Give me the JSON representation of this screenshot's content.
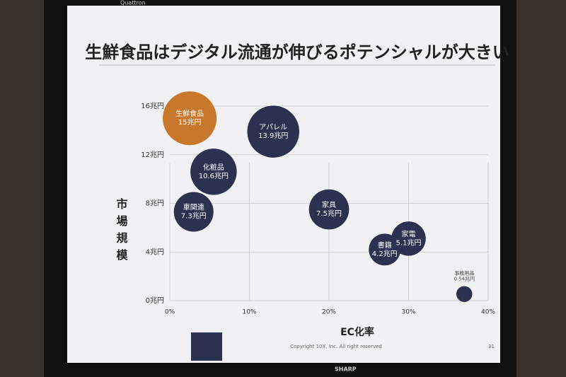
{
  "brand_top": "Quattron",
  "brand_bottom": "SHARP",
  "chart_data": {
    "type": "bubble",
    "title": "生鮮食品はデジタル流通が伸びるポテンシャルが大きい",
    "x_label": "EC化率",
    "y_label": "市場規模",
    "xlim": [
      0,
      40
    ],
    "ylim": [
      0,
      16
    ],
    "xticks": [
      {
        "value": 0,
        "label": "0%"
      },
      {
        "value": 10,
        "label": "10%"
      },
      {
        "value": 20,
        "label": "20%"
      },
      {
        "value": 30,
        "label": "30%"
      },
      {
        "value": 40,
        "label": "40%"
      }
    ],
    "yticks": [
      {
        "value": 0,
        "label": "0兆円"
      },
      {
        "value": 4,
        "label": "4兆円"
      },
      {
        "value": 8,
        "label": "8兆円"
      },
      {
        "value": 12,
        "label": "12兆円"
      },
      {
        "value": 16,
        "label": "16兆円"
      }
    ],
    "grid": true,
    "points": [
      {
        "name": "生鮮食品",
        "x": 2.5,
        "y": 15,
        "value_label": "15兆円",
        "color": "#c8782b"
      },
      {
        "name": "アパレル",
        "x": 13,
        "y": 13.9,
        "value_label": "13.9兆円",
        "color": "#2c3150"
      },
      {
        "name": "化粧品",
        "x": 5.5,
        "y": 10.6,
        "value_label": "10.6兆円",
        "color": "#2c3150"
      },
      {
        "name": "車関連",
        "x": 3,
        "y": 7.3,
        "value_label": "7.3兆円",
        "color": "#2c3150"
      },
      {
        "name": "家具",
        "x": 20,
        "y": 7.5,
        "value_label": "7.5兆円",
        "color": "#2c3150"
      },
      {
        "name": "書籍",
        "x": 27,
        "y": 4.2,
        "value_label": "4.2兆円",
        "color": "#2c3150"
      },
      {
        "name": "家電",
        "x": 30,
        "y": 5.1,
        "value_label": "5.1兆円",
        "color": "#2c3150"
      },
      {
        "name": "事務用品",
        "x": 37,
        "y": 0.54,
        "value_label": "0.54兆円",
        "color": "#2c3150"
      }
    ],
    "footer": "Copyright 10X, Inc. All right reserved",
    "page": "31"
  }
}
